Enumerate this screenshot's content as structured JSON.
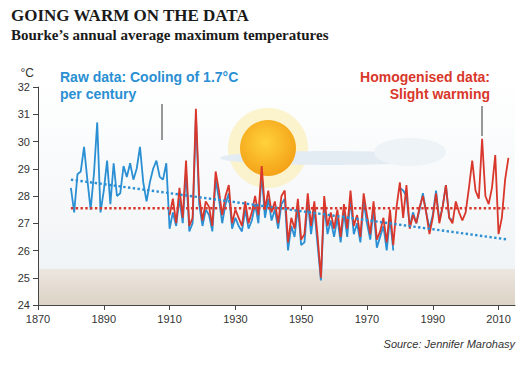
{
  "chart_data": {
    "type": "line",
    "title": "GOING WARM ON THE DATA",
    "subtitle": "Bourke’s annual average maximum temperatures",
    "ylabel": "°C",
    "source": "Source: Jennifer Marohasy",
    "annotations": [
      {
        "text": [
          "Raw data: Cooling of 1.7°C",
          "per century"
        ],
        "color": "#2a8fd3"
      },
      {
        "text": [
          "Homogenised data:",
          "Slight warming"
        ],
        "color": "#d9372b"
      }
    ],
    "xlim": [
      1870,
      2015
    ],
    "xticks": [
      1870,
      1890,
      1910,
      1930,
      1950,
      1970,
      1990,
      2010
    ],
    "ylim": [
      24,
      32
    ],
    "yticks": [
      24,
      25,
      26,
      27,
      28,
      29,
      30,
      31,
      32
    ],
    "grid": false,
    "series": [
      {
        "color": "#2a8fd3",
        "line_style": "solid",
        "x": [
          1880,
          1881,
          1882,
          1883,
          1884,
          1885,
          1886,
          1887,
          1888,
          1889,
          1890,
          1891,
          1892,
          1893,
          1894,
          1895,
          1896,
          1897,
          1898,
          1899,
          1900,
          1901,
          1902,
          1903,
          1904,
          1905,
          1906,
          1907,
          1908,
          1909,
          1910,
          1911,
          1912,
          1913,
          1914,
          1915,
          1916,
          1917,
          1918,
          1919,
          1920,
          1921,
          1922,
          1923,
          1924,
          1925,
          1926,
          1927,
          1928,
          1929,
          1930,
          1931,
          1932,
          1933,
          1934,
          1935,
          1936,
          1937,
          1938,
          1939,
          1940,
          1941,
          1942,
          1943,
          1944,
          1945,
          1946,
          1947,
          1948,
          1949,
          1950,
          1951,
          1952,
          1953,
          1954,
          1955,
          1956,
          1957,
          1958,
          1959,
          1960,
          1961,
          1962,
          1963,
          1964,
          1965,
          1966,
          1967,
          1968,
          1969,
          1970,
          1971,
          1972,
          1973,
          1974,
          1975,
          1976,
          1977,
          1978,
          1979,
          1980,
          1981,
          1982,
          1983,
          1984,
          1985,
          1986,
          1987,
          1988,
          1989,
          1990,
          1991,
          1992,
          1993,
          1994,
          1995,
          1996
        ],
        "values": [
          28.3,
          27.4,
          28.8,
          28.9,
          29.8,
          28.6,
          27.5,
          28.8,
          30.7,
          27.4,
          28.2,
          29.3,
          27.7,
          29.2,
          28.0,
          28.1,
          29.1,
          28.7,
          29.2,
          28.6,
          29.0,
          29.8,
          28.5,
          27.8,
          28.5,
          29.0,
          29.3,
          28.7,
          28.6,
          29.2,
          26.8,
          27.4,
          26.9,
          27.9,
          27.0,
          28.9,
          26.7,
          27.0,
          30.9,
          27.7,
          26.9,
          27.5,
          27.3,
          26.7,
          28.6,
          27.9,
          27.0,
          27.7,
          28.1,
          26.8,
          27.2,
          26.9,
          26.7,
          27.5,
          26.8,
          27.1,
          27.7,
          27.0,
          28.8,
          27.2,
          27.9,
          27.1,
          27.5,
          26.8,
          27.7,
          27.9,
          26.0,
          26.9,
          26.5,
          27.6,
          26.2,
          26.3,
          27.8,
          26.6,
          27.5,
          26.2,
          24.9,
          27.7,
          26.6,
          27.1,
          26.5,
          27.2,
          26.3,
          27.4,
          26.5,
          27.9,
          26.6,
          27.0,
          26.3,
          27.8,
          27.0,
          26.4,
          27.5,
          26.1,
          26.5,
          26.9,
          26.0,
          27.2,
          26.0,
          null,
          28.3,
          28.2,
          28.0,
          26.9,
          27.4,
          27.0,
          27.5,
          28.1,
          27.4,
          26.8,
          27.3,
          28.2,
          27.1,
          27.6,
          28.4,
          27.2,
          27.1
        ]
      },
      {
        "color": "#d9372b",
        "line_style": "solid",
        "x": [
          1910,
          1911,
          1912,
          1913,
          1914,
          1915,
          1916,
          1917,
          1918,
          1919,
          1920,
          1921,
          1922,
          1923,
          1924,
          1925,
          1926,
          1927,
          1928,
          1929,
          1930,
          1931,
          1932,
          1933,
          1934,
          1935,
          1936,
          1937,
          1938,
          1939,
          1940,
          1941,
          1942,
          1943,
          1944,
          1945,
          1946,
          1947,
          1948,
          1949,
          1950,
          1951,
          1952,
          1953,
          1954,
          1955,
          1956,
          1957,
          1958,
          1959,
          1960,
          1961,
          1962,
          1963,
          1964,
          1965,
          1966,
          1967,
          1968,
          1969,
          1970,
          1971,
          1972,
          1973,
          1974,
          1975,
          1976,
          1977,
          1978,
          1979,
          1980,
          1981,
          1982,
          1983,
          1984,
          1985,
          1986,
          1987,
          1988,
          1989,
          1990,
          1991,
          1992,
          1993,
          1994,
          1995,
          1996,
          1997,
          1998,
          1999,
          2000,
          2001,
          2002,
          2003,
          2004,
          2005,
          2006,
          2007,
          2008,
          2009,
          2010,
          2011,
          2012,
          2013
        ],
        "values": [
          27.3,
          27.9,
          27.0,
          28.3,
          27.2,
          29.3,
          26.9,
          27.2,
          31.2,
          28.0,
          27.1,
          27.8,
          27.6,
          26.9,
          28.9,
          28.2,
          27.3,
          28.0,
          28.4,
          27.0,
          27.5,
          27.2,
          26.9,
          27.8,
          27.0,
          27.4,
          28.0,
          27.3,
          29.1,
          27.5,
          28.2,
          27.4,
          27.8,
          27.0,
          28.0,
          28.2,
          26.3,
          27.2,
          26.8,
          27.9,
          26.4,
          26.6,
          28.1,
          26.9,
          27.8,
          26.5,
          25.0,
          28.0,
          26.9,
          27.4,
          26.8,
          27.5,
          26.5,
          27.7,
          26.8,
          28.2,
          26.9,
          27.3,
          26.5,
          28.1,
          27.3,
          26.6,
          27.8,
          26.4,
          26.7,
          27.2,
          26.3,
          27.5,
          26.2,
          27.6,
          28.5,
          27.2,
          28.4,
          26.8,
          27.3,
          27.0,
          27.6,
          28.0,
          27.4,
          26.6,
          27.2,
          28.1,
          27.0,
          27.6,
          28.4,
          27.2,
          27.0,
          27.8,
          27.4,
          27.1,
          27.4,
          28.3,
          29.3,
          28.2,
          27.9,
          30.1,
          28.0,
          27.7,
          28.3,
          29.5,
          26.6,
          27.2,
          28.6,
          29.4
        ]
      },
      {
        "color": "#2a8fd3",
        "line_style": "dotted",
        "x": [
          1880,
          2013
        ],
        "values": [
          28.6,
          26.4
        ]
      },
      {
        "color": "#d9372b",
        "line_style": "dotted",
        "x": [
          1880,
          2013
        ],
        "values": [
          27.55,
          27.55
        ]
      }
    ]
  }
}
